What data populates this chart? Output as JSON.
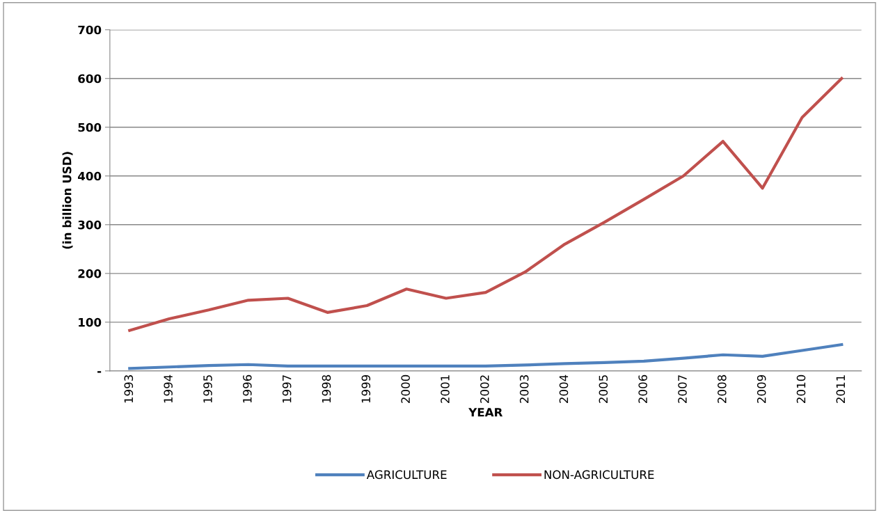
{
  "chart_data": {
    "type": "line",
    "xlabel": "YEAR",
    "ylabel": "(in billion USD)",
    "categories": [
      "1993",
      "1994",
      "1995",
      "1996",
      "1997",
      "1998",
      "1999",
      "2000",
      "2001",
      "2002",
      "2003",
      "2004",
      "2005",
      "2006",
      "2007",
      "2008",
      "2009",
      "2010",
      "2011"
    ],
    "series": [
      {
        "name": "AGRICULTURE",
        "color": "#4f81bd",
        "values": [
          5,
          8,
          11,
          13,
          10,
          10,
          10,
          10,
          10,
          10,
          12,
          15,
          17,
          20,
          26,
          33,
          30,
          42,
          54
        ]
      },
      {
        "name": "NON-AGRICULTURE",
        "color": "#c0504d",
        "values": [
          83,
          107,
          125,
          145,
          149,
          120,
          134,
          168,
          149,
          161,
          203,
          260,
          305,
          352,
          400,
          471,
          375,
          520,
          600
        ]
      }
    ],
    "ylim": [
      0,
      700
    ],
    "yticks": [
      {
        "value": 0,
        "label": "-"
      },
      100,
      200,
      300,
      400,
      500,
      600,
      700
    ],
    "grid": "y",
    "legend": "bottom",
    "marker": "none",
    "line_style": "solid"
  }
}
